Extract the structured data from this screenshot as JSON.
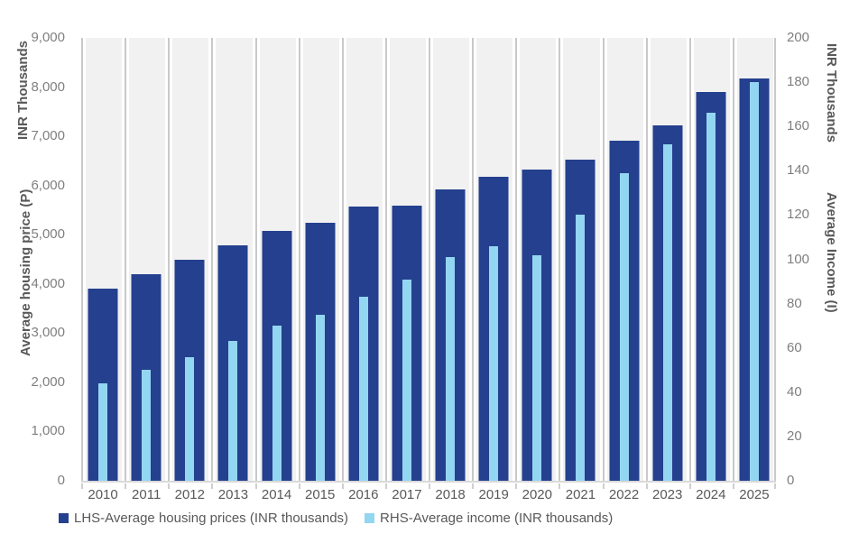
{
  "chart_data": {
    "type": "bar",
    "title": "",
    "categories": [
      "2010",
      "2011",
      "2012",
      "2013",
      "2014",
      "2015",
      "2016",
      "2017",
      "2018",
      "2019",
      "2020",
      "2021",
      "2022",
      "2023",
      "2024",
      "2025"
    ],
    "series": [
      {
        "name": "LHS-Average housing prices (INR thousands)",
        "axis": "left",
        "color": "#24408E",
        "values": [
          3900,
          4200,
          4500,
          4780,
          5080,
          5250,
          5580,
          5600,
          5930,
          6180,
          6330,
          6530,
          6910,
          7230,
          7900,
          8180
        ]
      },
      {
        "name": "RHS-Average income (INR thousands)",
        "axis": "right",
        "color": "#93D6F1",
        "values": [
          44,
          50,
          56,
          63,
          70,
          75,
          83,
          91,
          101,
          106,
          102,
          120,
          139,
          152,
          166,
          180
        ]
      }
    ],
    "left_axis": {
      "title_top": "INR Thousands",
      "title_main": "Average housing price (P)",
      "min": 0,
      "max": 9000,
      "step": 1000,
      "tick_labels": [
        "0",
        "1,000",
        "2,000",
        "3,000",
        "4,000",
        "5,000",
        "6,000",
        "7,000",
        "8,000",
        "9,000"
      ]
    },
    "right_axis": {
      "title_top": "INR Thousands",
      "title_main": "Average Income (I)",
      "min": 0,
      "max": 200,
      "step": 20,
      "tick_labels": [
        "0",
        "20",
        "40",
        "60",
        "80",
        "100",
        "120",
        "140",
        "160",
        "180",
        "200"
      ]
    },
    "grid": "vertical-only",
    "legend_position": "bottom",
    "plot_background": "#F1F1F1",
    "gridline_color": "#C9C9C9"
  },
  "legend": {
    "items": [
      {
        "label": "LHS-Average housing prices (INR thousands)",
        "color": "#24408E"
      },
      {
        "label": "RHS-Average income (INR thousands)",
        "color": "#93D6F1"
      }
    ]
  }
}
